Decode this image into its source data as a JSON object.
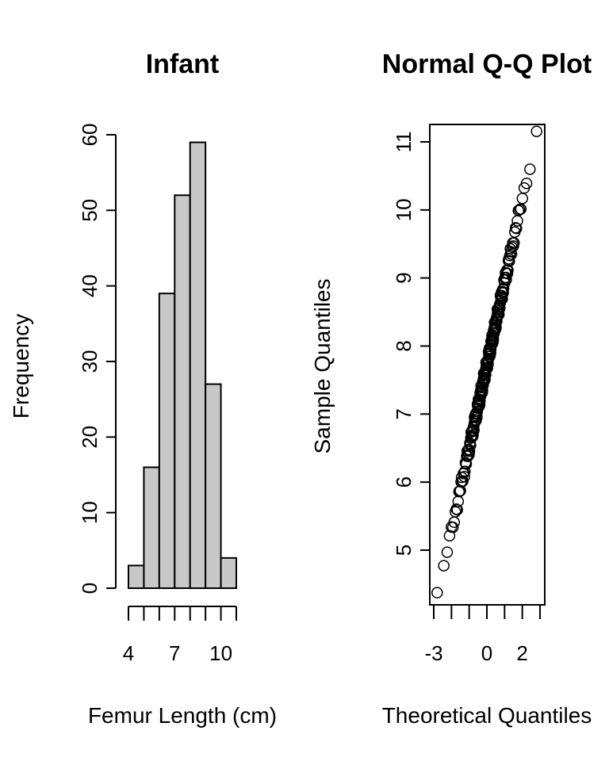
{
  "chart_data": [
    {
      "type": "bar",
      "title": "Infant",
      "xlabel": "Femur Length (cm)",
      "ylabel": "Frequency",
      "bin_edges": [
        4,
        5,
        6,
        7,
        8,
        9,
        10,
        11
      ],
      "values": [
        3,
        16,
        39,
        52,
        59,
        27,
        4
      ],
      "x_tick_values": [
        4,
        5,
        6,
        7,
        8,
        9,
        10,
        11
      ],
      "x_tick_labels": [
        "4",
        "",
        "",
        "7",
        "",
        "",
        "10",
        ""
      ],
      "ylim": [
        0,
        60
      ],
      "y_ticks": [
        0,
        10,
        20,
        30,
        40,
        50,
        60
      ],
      "bar_fill": "#c8c8c8",
      "grid": false
    },
    {
      "type": "scatter",
      "title": "Normal Q-Q Plot",
      "xlabel": "Theoretical Quantiles",
      "ylabel": "Sample Quantiles",
      "xlim": [
        -3,
        3
      ],
      "ylim": [
        4.4,
        11.0
      ],
      "x_tick_values": [
        -3,
        -2,
        -1,
        0,
        1,
        2,
        3
      ],
      "x_tick_labels": [
        "-3",
        "",
        "",
        "0",
        "",
        "2",
        ""
      ],
      "y_ticks": [
        5,
        6,
        7,
        8,
        9,
        10,
        11
      ],
      "grid": false,
      "n_points": 200,
      "mean": 7.72,
      "sd": 1.22
    }
  ]
}
